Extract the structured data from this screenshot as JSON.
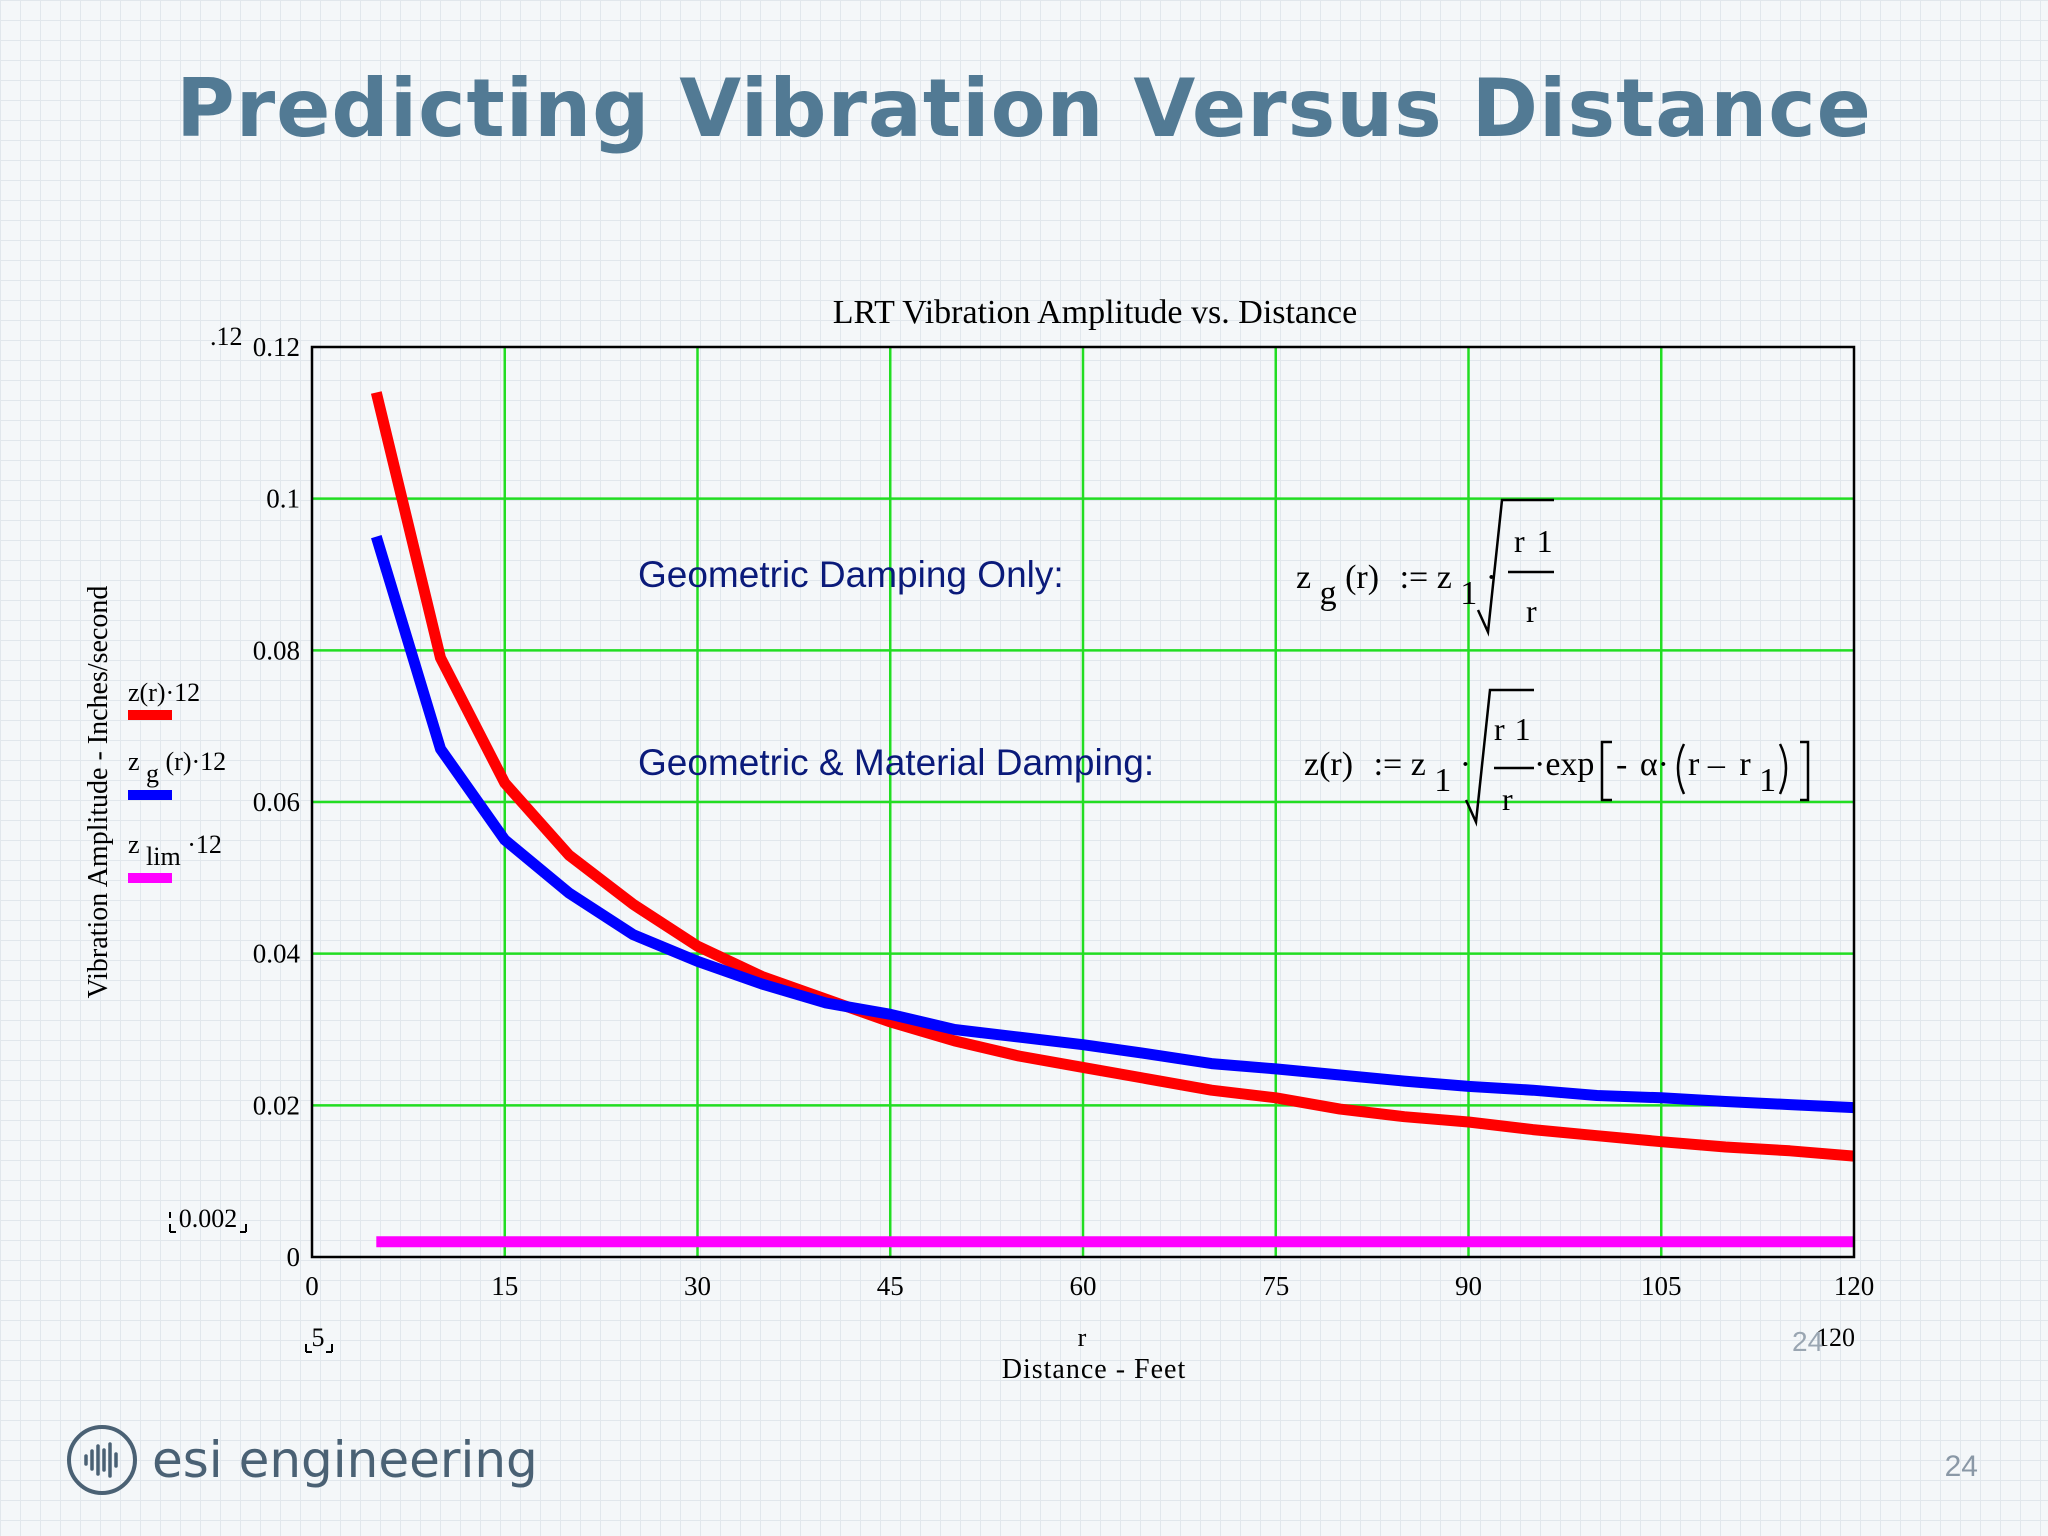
{
  "slide": {
    "title": "Predicting Vibration Versus Distance",
    "page_number": "24",
    "ghost_page_number": "24",
    "brand_name": "esi engineering",
    "brand_icon": "sound-wave-circle-icon"
  },
  "chart_data": {
    "type": "line",
    "title": "LRT  Vibration Amplitude vs. Distance",
    "xlabel": "Distance - Feet",
    "xvar": "r",
    "ylabel": "Vibration Amplitude - Inches/second",
    "xlim": [
      0,
      120
    ],
    "ylim": [
      0,
      0.12
    ],
    "x_ticks": [
      "0",
      "15",
      "30",
      "45",
      "60",
      "75",
      "90",
      "105",
      "120"
    ],
    "y_ticks": [
      "0",
      "0.02",
      "0.04",
      "0.06",
      "0.08",
      "0.1",
      "0.12"
    ],
    "grid": true,
    "colors": {
      "grid": "#22dd22",
      "frame": "#000000"
    },
    "range_markers": {
      "y_top": ".12",
      "y_marker": "0.002",
      "x_left": "5",
      "x_right": "120"
    },
    "legend": {
      "placement": "left-outside",
      "entries": [
        {
          "main": "z(r)·12",
          "sub": "",
          "suffix": "",
          "color": "#ff0000"
        },
        {
          "main": "z",
          "sub": "g",
          "suffix": "(r)·12",
          "color": "#0000ff"
        },
        {
          "main": "z",
          "sub": "lim",
          "suffix": "·12",
          "color": "#ff00ff"
        }
      ]
    },
    "annotations": {
      "geometric_only": "Geometric Damping Only:",
      "geometric_material": "Geometric & Material Damping:",
      "formula_geo": {
        "lhs_z": "z",
        "lhs_sub": "g",
        "lhs_arg": "(r)",
        "assign": ":=",
        "rhs_z": "z",
        "rhs_sub": "1",
        "dot": "·",
        "num_r": "r",
        "num_sub": "1",
        "den": "r"
      },
      "formula_mat": {
        "lhs": "z(r)",
        "assign": ":=",
        "rhs_z": "z",
        "rhs_sub": "1",
        "dot": "·",
        "num_r": "r",
        "num_sub": "1",
        "den": "r",
        "exp": "·exp",
        "minus": "-",
        "alpha": "α·",
        "inner_r": "r –",
        "inner_r1": "r",
        "inner_sub": "1"
      }
    },
    "series": [
      {
        "name": "z(r)·12",
        "color": "#ff0000",
        "x": [
          5,
          10,
          15,
          20,
          25,
          30,
          35,
          40,
          45,
          50,
          55,
          60,
          65,
          70,
          75,
          80,
          85,
          90,
          95,
          100,
          105,
          110,
          115,
          120
        ],
        "y": [
          0.114,
          0.079,
          0.0625,
          0.053,
          0.0465,
          0.041,
          0.037,
          0.034,
          0.031,
          0.0285,
          0.0265,
          0.025,
          0.0235,
          0.022,
          0.021,
          0.0195,
          0.0185,
          0.0178,
          0.0168,
          0.016,
          0.0152,
          0.0145,
          0.014,
          0.0133
        ]
      },
      {
        "name": "zg(r)·12",
        "color": "#0000ff",
        "x": [
          5,
          10,
          15,
          20,
          25,
          30,
          35,
          40,
          45,
          50,
          55,
          60,
          65,
          70,
          75,
          80,
          85,
          90,
          95,
          100,
          105,
          110,
          115,
          120
        ],
        "y": [
          0.095,
          0.067,
          0.055,
          0.048,
          0.0425,
          0.039,
          0.036,
          0.0335,
          0.032,
          0.03,
          0.029,
          0.028,
          0.0268,
          0.0255,
          0.0248,
          0.024,
          0.0232,
          0.0225,
          0.022,
          0.0213,
          0.021,
          0.0205,
          0.0201,
          0.0197
        ]
      },
      {
        "name": "zlim·12",
        "color": "#ff00ff",
        "x": [
          5,
          120
        ],
        "y": [
          0.002,
          0.002
        ]
      }
    ]
  }
}
